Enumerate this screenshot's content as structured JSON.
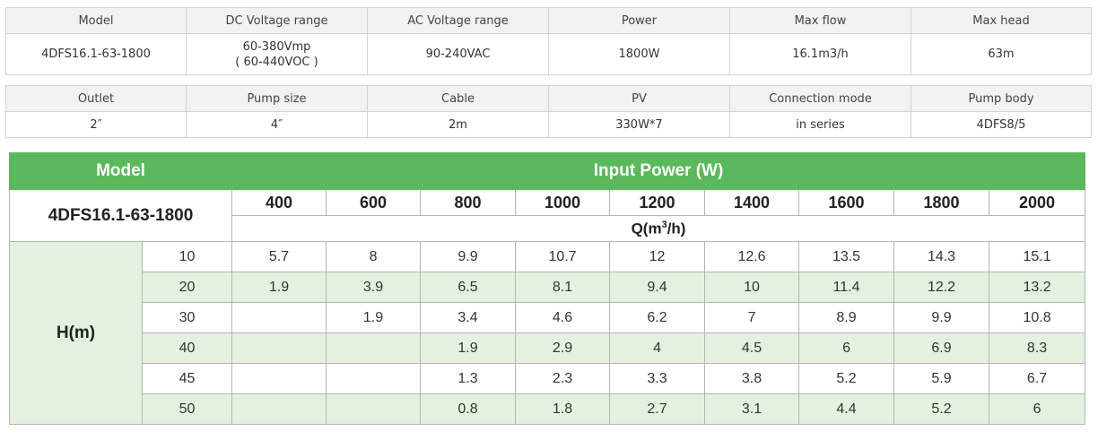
{
  "spec_table_1": {
    "headers": [
      "Model",
      "DC Voltage range",
      "AC Voltage range",
      "Power",
      "Max flow",
      "Max head"
    ],
    "values": [
      "4DFS16.1-63-1800",
      "60-380Vmp",
      "90-240VAC",
      "1800W",
      "16.1m3/h",
      "63m"
    ],
    "dc_voltage_line2": "( 60-440VOC )"
  },
  "spec_table_2": {
    "headers": [
      "Outlet",
      "Pump size",
      "Cable",
      "PV",
      "Connection mode",
      "Pump body"
    ],
    "values": [
      "2″",
      "4″",
      "2m",
      "330W*7",
      "in series",
      "4DFS8/5"
    ]
  },
  "performance_table": {
    "model_header": "Model",
    "input_power_header": "Input Power (W)",
    "model_name": "4DFS16.1-63-1800",
    "q_label": "Q(m",
    "q_sup": "3",
    "q_tail": "/h)",
    "h_label": "H(m)",
    "powers": [
      "400",
      "600",
      "800",
      "1000",
      "1200",
      "1400",
      "1600",
      "1800",
      "2000"
    ],
    "rows": [
      {
        "head": "10",
        "values": [
          "5.7",
          "8",
          "9.9",
          "10.7",
          "12",
          "12.6",
          "13.5",
          "14.3",
          "15.1"
        ]
      },
      {
        "head": "20",
        "values": [
          "1.9",
          "3.9",
          "6.5",
          "8.1",
          "9.4",
          "10",
          "11.4",
          "12.2",
          "13.2"
        ]
      },
      {
        "head": "30",
        "values": [
          "",
          "1.9",
          "3.4",
          "4.6",
          "6.2",
          "7",
          "8.9",
          "9.9",
          "10.8"
        ]
      },
      {
        "head": "40",
        "values": [
          "",
          "",
          "1.9",
          "2.9",
          "4",
          "4.5",
          "6",
          "6.9",
          "8.3"
        ]
      },
      {
        "head": "45",
        "values": [
          "",
          "",
          "1.3",
          "2.3",
          "3.3",
          "3.8",
          "5.2",
          "5.9",
          "6.7"
        ]
      },
      {
        "head": "50",
        "values": [
          "",
          "",
          "0.8",
          "1.8",
          "2.7",
          "3.1",
          "4.4",
          "5.2",
          "6"
        ]
      }
    ]
  },
  "colors": {
    "header_green": "#5cb85c",
    "row_shade": "#e4f1df",
    "spec_header_bg": "#f2f2f2"
  }
}
